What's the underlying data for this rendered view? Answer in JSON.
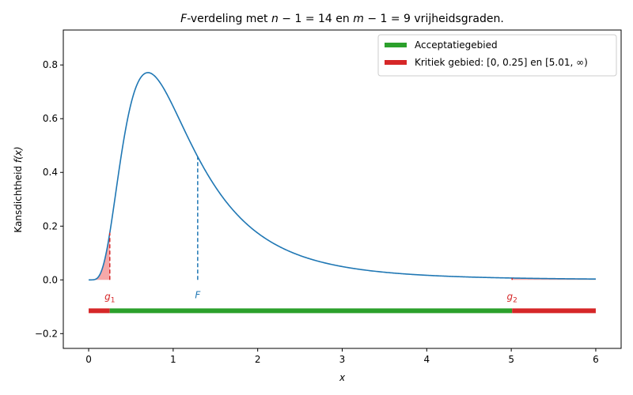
{
  "chart_data": {
    "type": "line",
    "title": {
      "pre": "F",
      "mid1": "-verdeling met ",
      "n": "n",
      "eq1": " − 1 = 14 en ",
      "m": "m",
      "eq2": " − 1 = 9 vrijheidsgraden."
    },
    "xlabel": "x",
    "ylabel": {
      "pre": "Kansdichtheid ",
      "fx": "f(x)"
    },
    "xlim": [
      -0.3,
      6.3
    ],
    "ylim": [
      -0.255,
      0.93
    ],
    "xticks": [
      0,
      1,
      2,
      3,
      4,
      5,
      6
    ],
    "xtick_labels": [
      "0",
      "1",
      "2",
      "3",
      "4",
      "5",
      "6"
    ],
    "yticks": [
      -0.2,
      0.0,
      0.2,
      0.4,
      0.6,
      0.8
    ],
    "ytick_labels": [
      "−0.2",
      "0.0",
      "0.2",
      "0.4",
      "0.6",
      "0.8"
    ],
    "df1": 14,
    "df2": 9,
    "x_range": [
      0,
      6
    ],
    "g1": 0.25,
    "g2": 5.01,
    "F_stat": 1.29,
    "annotations": {
      "g1": {
        "base": "g",
        "sub": "1"
      },
      "g2": {
        "base": "g",
        "sub": "2"
      },
      "F": "F"
    },
    "bar_y": -0.115,
    "legend": {
      "position": "top-right",
      "entries": [
        {
          "label": "Acceptatiegebied",
          "color": "#2ca02c"
        },
        {
          "label": "Kritiek gebied: [0, 0.25] en [5.01, ∞)",
          "color": "#d62728"
        }
      ]
    },
    "colors": {
      "curve": "#1f77b4",
      "critical": "#d62728",
      "critical_fill": "#f4a0a0",
      "accept": "#2ca02c"
    }
  }
}
